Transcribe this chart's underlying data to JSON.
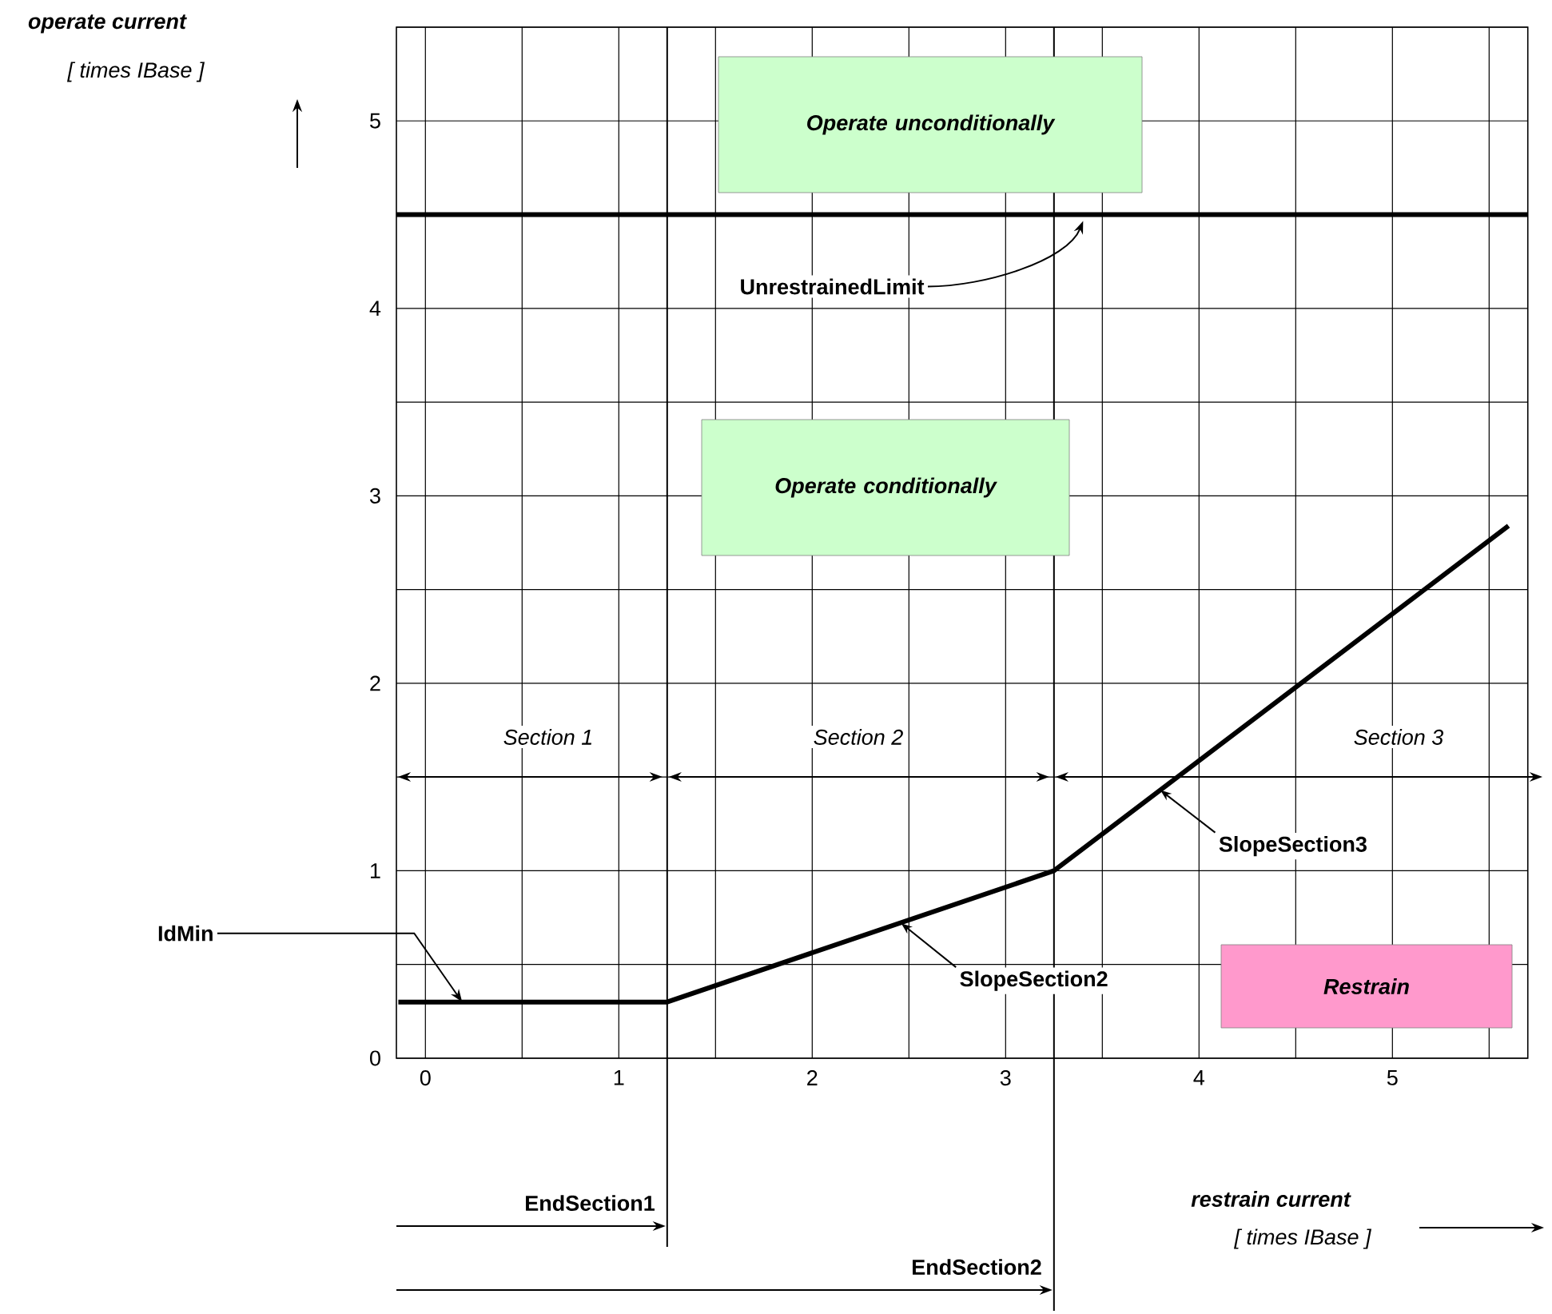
{
  "chart_data": {
    "type": "line",
    "xlabel": "restrain current",
    "xlim": [
      -0.15,
      5.7
    ],
    "ylim": [
      0,
      5.5
    ],
    "xticks": [
      0,
      1,
      2,
      3,
      4,
      5
    ],
    "yticks": [
      0,
      1,
      2,
      3,
      4,
      5
    ],
    "grid": true,
    "series": [
      {
        "color": "#000000",
        "x": [
          -0.14,
          1.25,
          3.25,
          5.6
        ],
        "values": [
          0.3,
          0.3,
          1.0,
          2.84
        ]
      }
    ],
    "ref_lines": [
      {
        "axis": "y",
        "value": 4.5,
        "label": "UnrestrainedLimit",
        "color": "#000000"
      },
      {
        "axis": "x",
        "value": 1.25,
        "label": "EndSection1",
        "color": "#000000"
      },
      {
        "axis": "x",
        "value": 3.25,
        "label": "EndSection2",
        "color": "#000000"
      }
    ],
    "annotations": [
      "Operate unconditionally",
      "Operate conditionally",
      "Restrain",
      "Section 1",
      "Section 2",
      "Section 3",
      {
        "text": "IdMin",
        "x": 0.19,
        "y": 0.3
      },
      {
        "text": "SlopeSection2",
        "x": 2.46,
        "y": 0.72
      },
      {
        "text": "SlopeSection3",
        "x": 3.8,
        "y": 1.43
      },
      "[ times IBase ]",
      "[ times IBase ]",
      "operate current"
    ]
  }
}
